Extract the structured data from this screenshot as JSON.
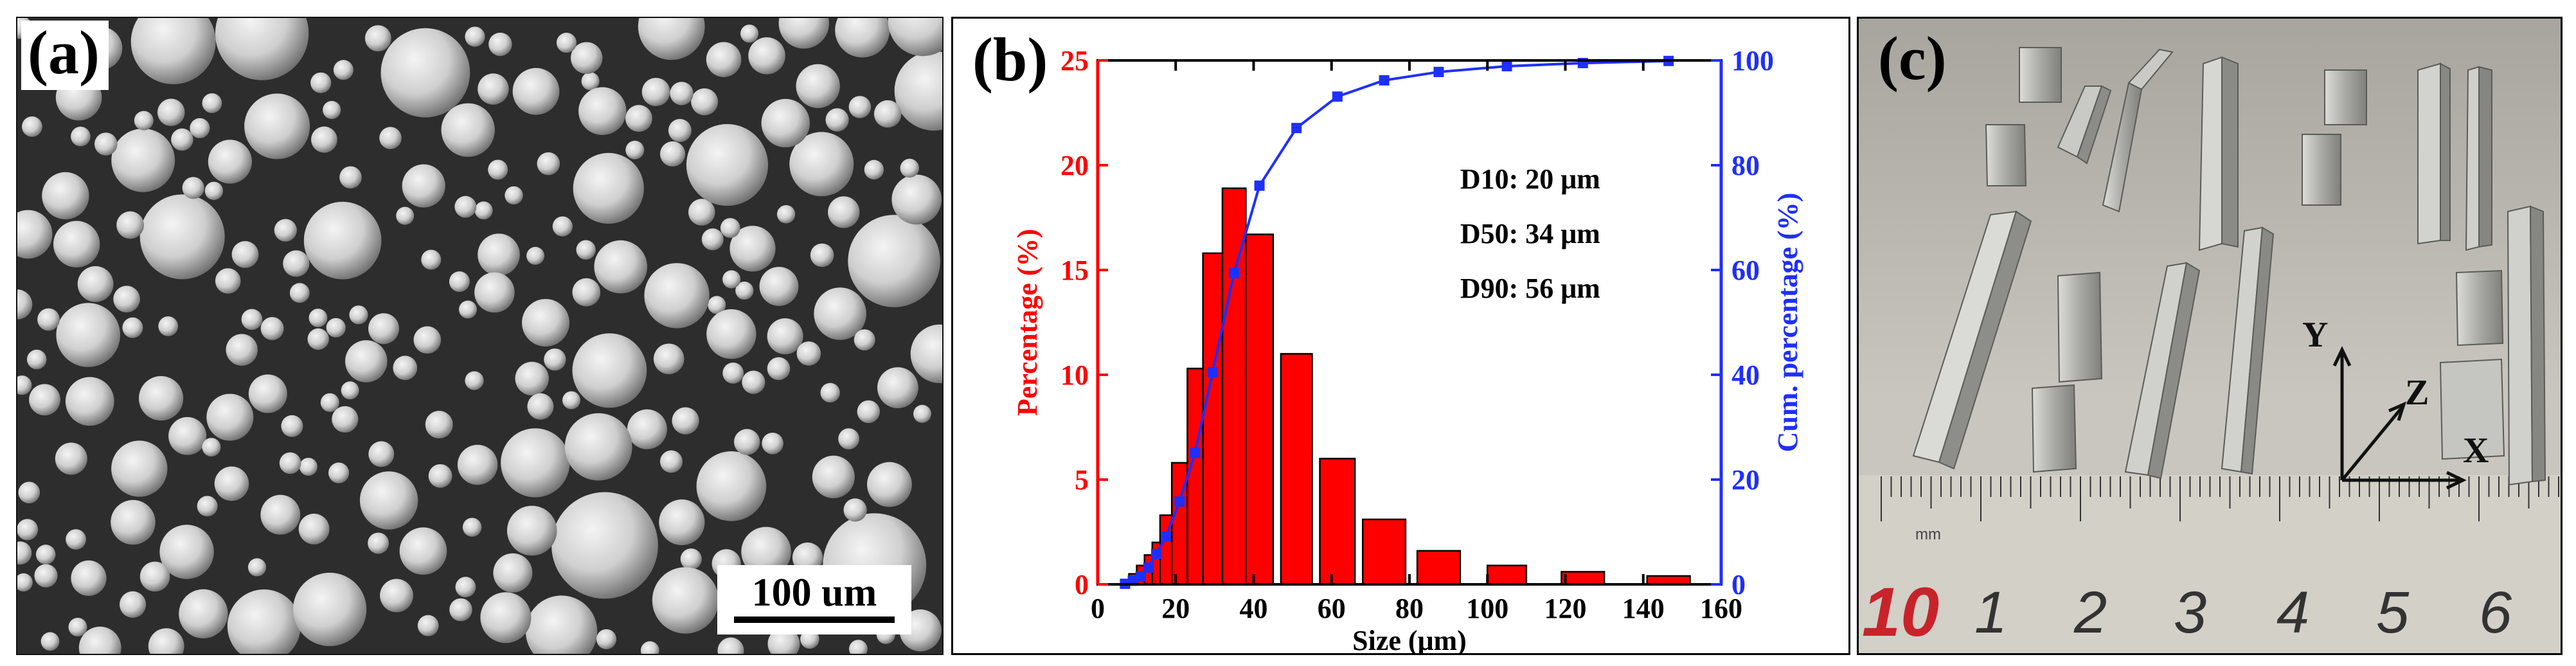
{
  "panel_a": {
    "label": "(a)",
    "scale_bar": "100 um"
  },
  "panel_b": {
    "label": "(b)"
  },
  "panel_c": {
    "label": "(c)",
    "axes": [
      "Y",
      "Z",
      "X"
    ],
    "ruler_numbers": [
      "10",
      "1",
      "2",
      "3",
      "4",
      "5",
      "6"
    ],
    "ruler_unit": "mm"
  },
  "chart_data": {
    "type": "bar",
    "xlabel": "Size (μm)",
    "ylabel": "Percentage (%)",
    "y2label": "Cum. percentage (%)",
    "xlim": [
      0,
      160
    ],
    "ylim": [
      0,
      25
    ],
    "y2lim": [
      0,
      100
    ],
    "xticks": [
      "0",
      "20",
      "40",
      "60",
      "80",
      "100",
      "120",
      "140",
      "160"
    ],
    "yticks": [
      "0",
      "5",
      "10",
      "15",
      "20",
      "25"
    ],
    "y2ticks": [
      "0",
      "20",
      "40",
      "60",
      "80",
      "100"
    ],
    "annotations": [
      "D10: 20 μm",
      "D50: 34 μm",
      "D90: 56 μm"
    ],
    "colors": {
      "bars": "#ff0000",
      "cumulative": "#1f2fff",
      "left_axis": "#ff0000",
      "right_axis": "#1f2fff"
    },
    "series": [
      {
        "name": "Percentage",
        "type": "bar",
        "bars": [
          {
            "x0": 6,
            "x1": 8,
            "value": 0.2
          },
          {
            "x0": 8,
            "x1": 10,
            "value": 0.5
          },
          {
            "x0": 10,
            "x1": 12,
            "value": 0.9
          },
          {
            "x0": 12,
            "x1": 14,
            "value": 1.4
          },
          {
            "x0": 14,
            "x1": 16,
            "value": 2.0
          },
          {
            "x0": 16,
            "x1": 19,
            "value": 3.3
          },
          {
            "x0": 19,
            "x1": 23,
            "value": 5.8
          },
          {
            "x0": 23,
            "x1": 27,
            "value": 10.3
          },
          {
            "x0": 27,
            "x1": 32,
            "value": 15.8
          },
          {
            "x0": 32,
            "x1": 38,
            "value": 18.9
          },
          {
            "x0": 38,
            "x1": 45,
            "value": 16.7
          },
          {
            "x0": 47,
            "x1": 55,
            "value": 11.0
          },
          {
            "x0": 57,
            "x1": 66,
            "value": 6.0
          },
          {
            "x0": 68,
            "x1": 79,
            "value": 3.1
          },
          {
            "x0": 82,
            "x1": 93,
            "value": 1.6
          },
          {
            "x0": 100,
            "x1": 110,
            "value": 0.9
          },
          {
            "x0": 119,
            "x1": 130,
            "value": 0.6
          },
          {
            "x0": 141,
            "x1": 152,
            "value": 0.4
          }
        ]
      },
      {
        "name": "Cum. percentage",
        "type": "line",
        "x": [
          7,
          9,
          11,
          13,
          15,
          17.5,
          21,
          25,
          29.5,
          35,
          41.5,
          51,
          61.5,
          73.5,
          87.5,
          105,
          124.5,
          146.5
        ],
        "y": [
          0.1,
          0.7,
          1.5,
          3.2,
          5.8,
          9.1,
          15.8,
          25.1,
          40.5,
          59.4,
          76.1,
          87.1,
          93.1,
          96.2,
          97.8,
          98.9,
          99.5,
          99.9
        ]
      }
    ]
  }
}
